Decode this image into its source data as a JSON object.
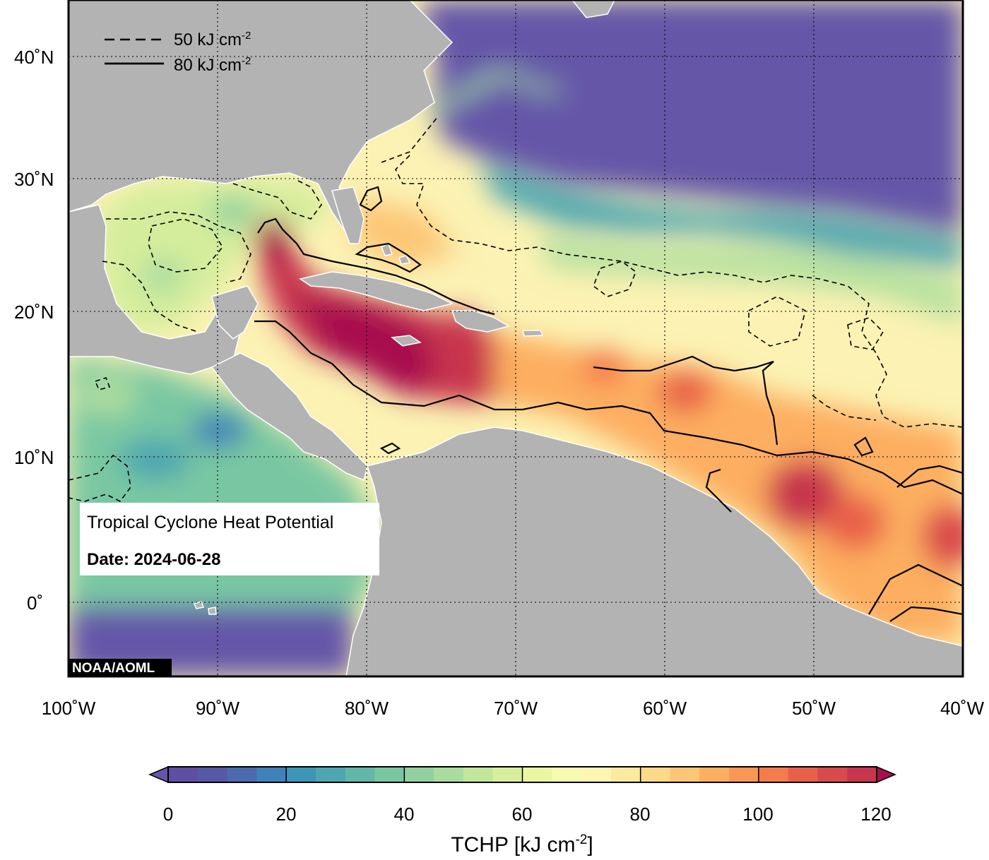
{
  "map": {
    "title": "Tropical Cyclone Heat Potential",
    "date_label": "Date: 2024-06-28",
    "credit": "NOAA/AOML",
    "lon_ticks": [
      "100˚W",
      "90˚W",
      "80˚W",
      "70˚W",
      "60˚W",
      "50˚W",
      "40˚W"
    ],
    "lat_ticks": [
      "40˚N",
      "30˚N",
      "20˚N",
      "10˚N",
      "0˚"
    ],
    "legend": [
      {
        "label": "50 kJ cm",
        "sup": "-2",
        "style": "dashed"
      },
      {
        "label": "80 kJ cm",
        "sup": "-2",
        "style": "solid"
      }
    ],
    "land_color": "#b3b3b3",
    "low_color": "#6556a8",
    "high_color": "#a80f4e"
  },
  "colorbar": {
    "title": "TCHP [kJ cm",
    "title_sup": "-2",
    "title_end": "]",
    "min": 0,
    "max": 120,
    "step": 5,
    "ticks": [
      "0",
      "20",
      "40",
      "60",
      "80",
      "100",
      "120"
    ],
    "colors": [
      "#5e4fa2",
      "#5659a6",
      "#4c6aad",
      "#3f82b8",
      "#3d96b7",
      "#4ea6b0",
      "#62b7a8",
      "#79c7a2",
      "#91d19f",
      "#aadc9f",
      "#c2e79b",
      "#d7ef9c",
      "#ebf6a0",
      "#f7fbb2",
      "#fff6b3",
      "#fee9a0",
      "#fdd98a",
      "#fdc676",
      "#fdae61",
      "#fa9656",
      "#f47c4c",
      "#e8604a",
      "#d94a4c",
      "#c8354e"
    ]
  }
}
